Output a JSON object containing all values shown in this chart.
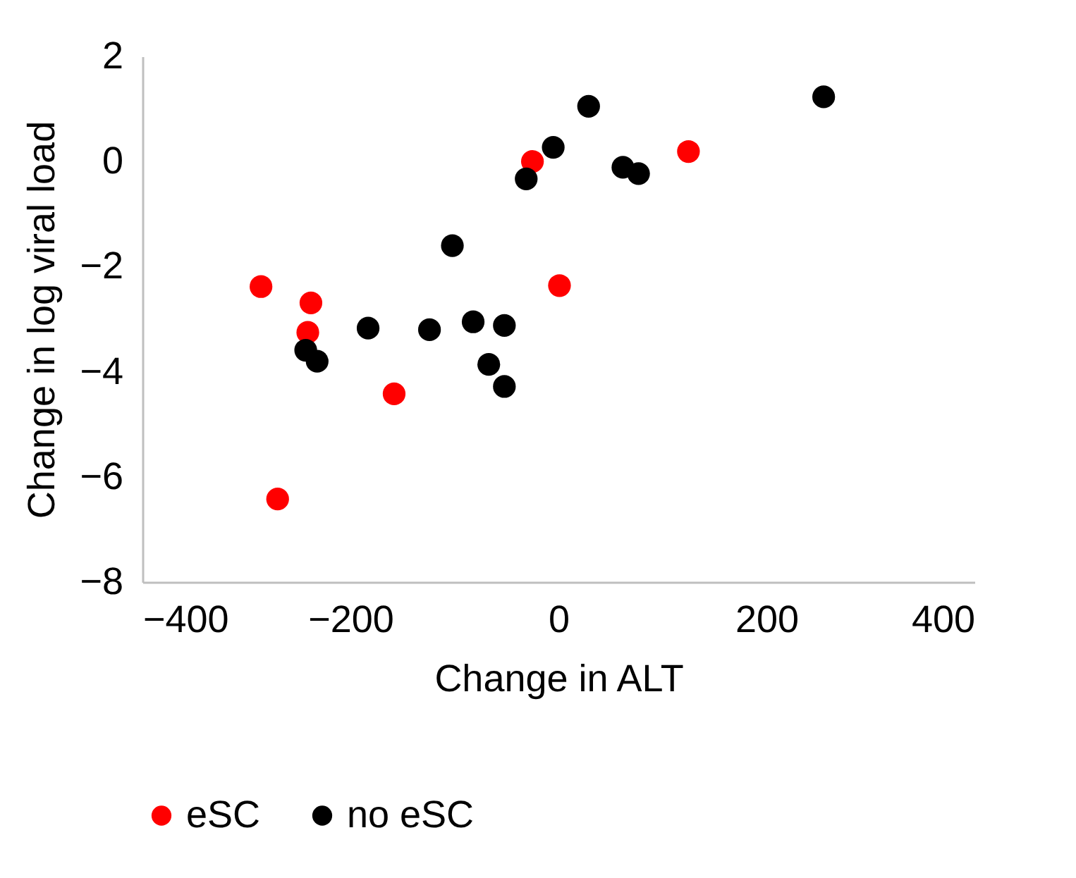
{
  "chart_data": {
    "type": "scatter",
    "xlabel": "Change in ALT",
    "ylabel": "Change in log viral load",
    "xlim": [
      -400,
      400
    ],
    "xticks": [
      -400,
      -200,
      0,
      200,
      400
    ],
    "ylim": [
      -8,
      2
    ],
    "yticks": [
      -8,
      -6,
      -4,
      -2,
      0,
      2
    ],
    "grid": false,
    "legend": "bottom",
    "marker": "circle",
    "series": [
      {
        "name": "eSC",
        "color": "#ff0000",
        "x": [
          -286,
          -238,
          -241,
          -158,
          -270,
          -25,
          1,
          125
        ],
        "values": [
          -2.38,
          -2.69,
          -3.25,
          -4.42,
          -6.42,
          0,
          -2.36,
          0.19
        ]
      },
      {
        "name": "no eSC",
        "color": "#000000",
        "x": [
          -5,
          -31,
          -102,
          -183,
          -124,
          -82,
          -52,
          -243,
          -232,
          -67,
          -52,
          29,
          62,
          77,
          255
        ],
        "values": [
          0.27,
          -0.33,
          -1.6,
          -3.17,
          -3.2,
          -3.05,
          -3.12,
          -3.59,
          -3.8,
          -3.86,
          -4.28,
          1.05,
          -0.11,
          -0.23,
          1.23
        ]
      }
    ]
  }
}
